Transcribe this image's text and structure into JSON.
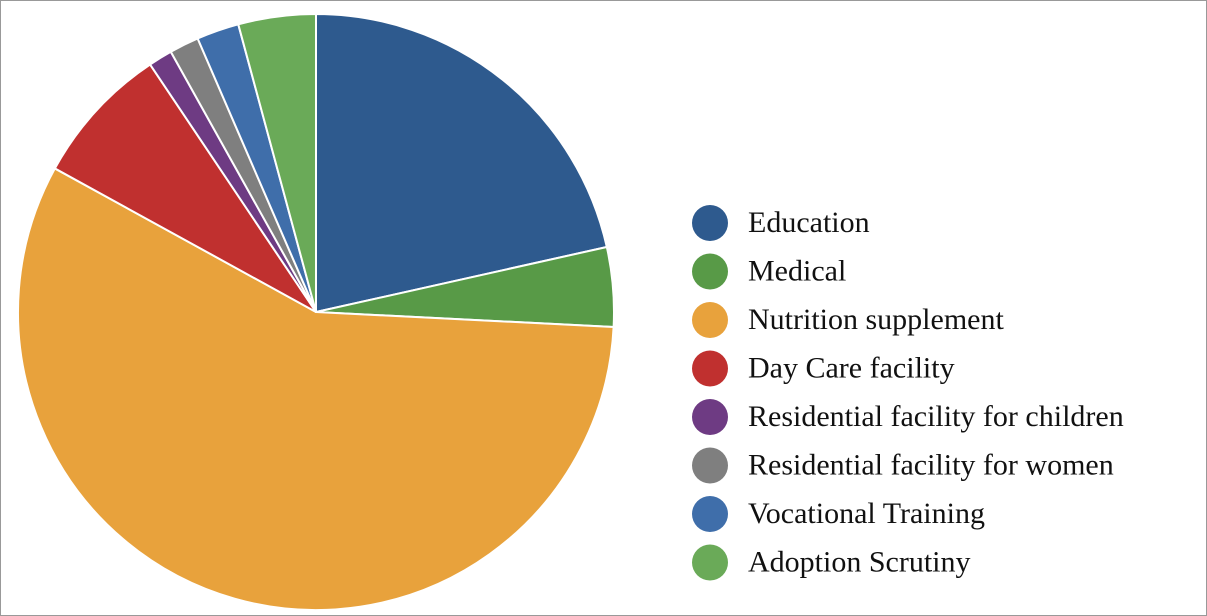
{
  "chart_data": {
    "type": "pie",
    "categories": [
      "Education",
      "Medical",
      "Nutrition supplement",
      "Day Care facility",
      "Residential facility for children",
      "Residential facility for women",
      "Vocational Training",
      "Adoption Scrutiny"
    ],
    "values": [
      21.5,
      4.3,
      57.2,
      7.6,
      1.3,
      1.6,
      2.3,
      4.2
    ],
    "colors": [
      "#2e5a8e",
      "#589a47",
      "#e8a23c",
      "#c0302f",
      "#6e3b83",
      "#7f7f7f",
      "#3f6eaa",
      "#6aaa58"
    ],
    "legend": "right"
  }
}
